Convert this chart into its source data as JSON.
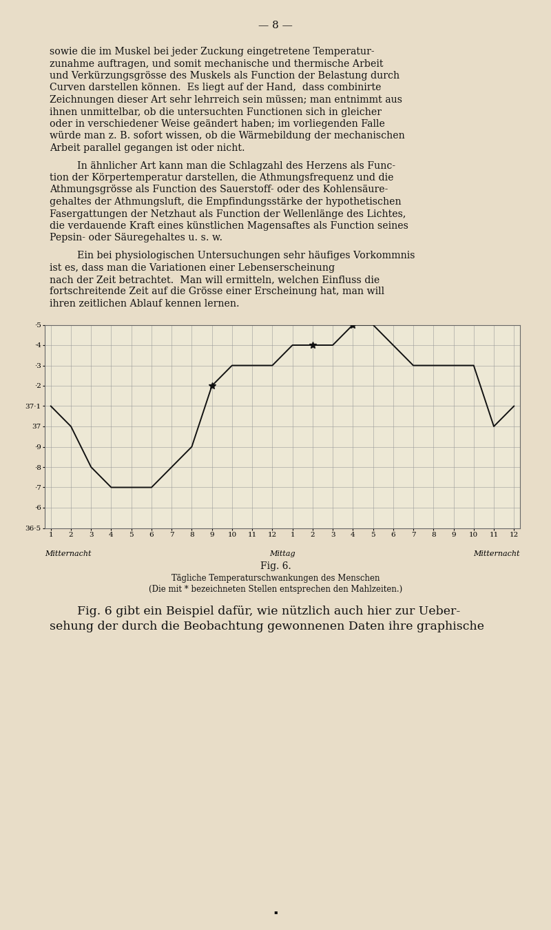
{
  "bg_color": "#e8ddc8",
  "grid_color": "#999999",
  "line_color": "#111111",
  "text_color": "#111111",
  "title_text": "Fig. 6.",
  "subtitle1": "Tägliche Temperaturschwankungen des Menschen",
  "subtitle2": "(Die mit * bezeichneten Stellen entsprechen den Mahlzeiten.)",
  "xlabel_left": "Mitternacht",
  "xlabel_mid": "Mittag",
  "xlabel_right": "Mitternacht",
  "page_number": "— 8 —",
  "ymin": 36.5,
  "ymax": 37.5,
  "ytick_labels": [
    "36·5",
    "·6",
    "·7",
    "·8",
    "·9",
    "37",
    "37·1",
    "·2",
    "·3",
    "·4",
    "·5"
  ],
  "ytick_values": [
    36.5,
    36.6,
    36.7,
    36.8,
    36.9,
    37.0,
    37.1,
    37.2,
    37.3,
    37.4,
    37.5
  ],
  "xtick_labels": [
    "1",
    "2",
    "3",
    "4",
    "5",
    "6",
    "7",
    "8",
    "9",
    "10",
    "11",
    "12",
    "1",
    "2",
    "3",
    "4",
    "5",
    "6",
    "7",
    "8",
    "9",
    "10",
    "11",
    "12"
  ],
  "data_x": [
    0,
    1,
    2,
    3,
    4,
    5,
    6,
    7,
    8,
    9,
    10,
    11,
    12,
    13,
    14,
    15,
    16,
    17,
    18,
    19,
    20,
    21,
    22,
    23
  ],
  "data_y": [
    37.1,
    37.0,
    36.8,
    36.7,
    36.7,
    36.7,
    36.8,
    36.9,
    37.2,
    37.3,
    37.3,
    37.3,
    37.4,
    37.4,
    37.4,
    37.5,
    37.5,
    37.4,
    37.3,
    37.3,
    37.3,
    37.3,
    37.0,
    37.1
  ],
  "star_indices": [
    8,
    13,
    15
  ],
  "para1_lines": [
    "sowie die im Muskel bei jeder Zuckung eingetretene Temperatur-",
    "zunahme auftragen, und somit mechanische und thermische Arbeit",
    "und Verkürzungsgrösse des Muskels als Function der Belastung durch",
    "Curven darstellen können.  Es liegt auf der Hand,  dass combinirte",
    "Zeichnungen dieser Art sehr lehrreich sein müssen; man entnimmt aus",
    "ihnen unmittelbar, ob die untersuchten Functionen sich in gleicher",
    "oder in verschiedener Weise geändert haben; im vorliegenden Falle",
    "würde man z. B. sofort wissen, ob die Wärmebildung der mechanischen",
    "Arbeit parallel gegangen ist oder nicht."
  ],
  "para2_lines": [
    "In ähnlicher Art kann man die Schlagzahl des Herzens als Func-",
    "tion der Körpertemperatur darstellen, die Athmungsfrequenz und die",
    "Athmungsgrösse als Function des Sauerstoff- oder des Kohlensäure-",
    "gehaltes der Athmungsluft, die Empfindungsstärke der hypothetischen",
    "Fasergattungen der Netzhaut als Function der Wellenlänge des Lichtes,",
    "die verdauende Kraft eines künstlichen Magensaftes als Function seines",
    "Pepsin- oder Säuregehaltes u. s. w."
  ],
  "para3_lines": [
    "Ein bei physiologischen Untersuchungen sehr häufiges Vorkommnis",
    "ist es, dass man die Variationen einer Lebenserscheinung",
    "nach der Zeit betrachtet.  Man will ermitteln, welchen Einfluss die",
    "fortschreitende Zeit auf die Grösse einer Erscheinung hat, man will",
    "ihren zeitlichen Ablauf kennen lernen."
  ],
  "para4_lines": [
    "Fig. 6 gibt ein Beispiel dafür, wie nützlich auch hier zur Ueber-",
    "sehung der durch die Beobachtung gewonnenen Daten ihre graphische"
  ]
}
